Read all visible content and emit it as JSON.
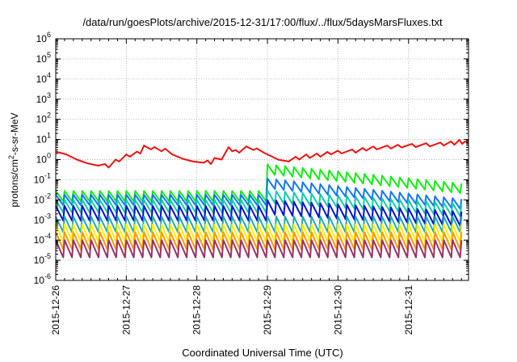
{
  "chart_data": {
    "type": "line",
    "title": "/data/run/goesPlots/archive/2015-12-31/17:00/flux/../flux/5daysMarsFluxes.txt",
    "xlabel": "Coordinated Universal Time (UTC)",
    "ylabel_parts": {
      "pre": "protons/cm",
      "sup": "2",
      "post": "-s-sr-MeV"
    },
    "x_ticks": [
      "2015-12-26",
      "2015-12-27",
      "2015-12-28",
      "2015-12-29",
      "2015-12-30",
      "2015-12-31"
    ],
    "x_range_days": [
      0,
      5.85
    ],
    "y_scale": "log",
    "ylim": [
      1e-06,
      1000000.0
    ],
    "y_tick_exponents": [
      -6,
      -5,
      -4,
      -3,
      -2,
      -1,
      0,
      1,
      2,
      3,
      4,
      5,
      6
    ],
    "y_tick_base": "10",
    "grid": true,
    "series": [
      {
        "color": "#ee1111",
        "points": [
          [
            0,
            2.5
          ],
          [
            0.15,
            1.8
          ],
          [
            0.3,
            1.0
          ],
          [
            0.45,
            0.65
          ],
          [
            0.6,
            0.5
          ],
          [
            0.7,
            0.6
          ],
          [
            0.75,
            0.4
          ],
          [
            0.85,
            1.0
          ],
          [
            0.9,
            0.8
          ],
          [
            1.0,
            1.8
          ],
          [
            1.05,
            1.4
          ],
          [
            1.15,
            2.5
          ],
          [
            1.2,
            2.0
          ],
          [
            1.25,
            5.0
          ],
          [
            1.35,
            3.2
          ],
          [
            1.4,
            4.2
          ],
          [
            1.5,
            2.6
          ],
          [
            1.55,
            3.5
          ],
          [
            1.65,
            1.8
          ],
          [
            1.8,
            1.1
          ],
          [
            1.95,
            0.8
          ],
          [
            2.1,
            0.7
          ],
          [
            2.15,
            0.9
          ],
          [
            2.2,
            0.6
          ],
          [
            2.25,
            1.2
          ],
          [
            2.35,
            1.0
          ],
          [
            2.45,
            4.2
          ],
          [
            2.5,
            2.6
          ],
          [
            2.55,
            3.0
          ],
          [
            2.6,
            2.2
          ],
          [
            2.7,
            4.5
          ],
          [
            2.8,
            3.0
          ],
          [
            2.85,
            3.6
          ],
          [
            2.95,
            2.2
          ],
          [
            3.05,
            1.5
          ],
          [
            3.15,
            1.0
          ],
          [
            3.3,
            0.8
          ],
          [
            3.4,
            1.4
          ],
          [
            3.45,
            1.0
          ],
          [
            3.55,
            1.8
          ],
          [
            3.6,
            1.2
          ],
          [
            3.7,
            2.0
          ],
          [
            3.75,
            1.4
          ],
          [
            3.85,
            2.4
          ],
          [
            3.9,
            1.8
          ],
          [
            4.0,
            2.8
          ],
          [
            4.05,
            2.0
          ],
          [
            4.2,
            3.2
          ],
          [
            4.25,
            2.2
          ],
          [
            4.35,
            3.8
          ],
          [
            4.4,
            2.8
          ],
          [
            4.5,
            4.5
          ],
          [
            4.55,
            3.2
          ],
          [
            4.7,
            5.0
          ],
          [
            4.75,
            3.5
          ],
          [
            4.85,
            5.5
          ],
          [
            4.9,
            4.0
          ],
          [
            5.05,
            6.0
          ],
          [
            5.1,
            4.2
          ],
          [
            5.25,
            6.5
          ],
          [
            5.3,
            4.5
          ],
          [
            5.45,
            7.0
          ],
          [
            5.5,
            5.0
          ],
          [
            5.6,
            8.0
          ],
          [
            5.65,
            5.5
          ],
          [
            5.72,
            9.5
          ],
          [
            5.76,
            6.0
          ],
          [
            5.8,
            8.0
          ],
          [
            5.85,
            6.5
          ]
        ]
      },
      {
        "color": "#11ee11",
        "base": 0.028,
        "amp": 5,
        "jump_day": 2.95,
        "jump_to": 0.6,
        "end": 0.06,
        "decay": 0.5
      },
      {
        "color": "#1177ee",
        "base": 0.018,
        "amp": 5,
        "jump_day": 2.95,
        "jump_to": 0.12,
        "end": 0.01,
        "decay": 0.5
      },
      {
        "color": "#11ccaa",
        "base": 0.01,
        "amp": 6,
        "jump_day": 2.95,
        "jump_to": 0.03,
        "end": 0.006,
        "decay": 0.4
      },
      {
        "color": "#0011cc",
        "base": 0.005,
        "amp": 7,
        "jump_day": 2.95,
        "jump_to": 0.01,
        "end": 0.0025,
        "decay": 0.3
      },
      {
        "color": "#22aaaa",
        "base": 0.0015,
        "amp": 7,
        "jump_day": 99,
        "jump_to": 0.0015,
        "end": 0.0012,
        "decay": 0.15
      },
      {
        "color": "#ffee00",
        "base": 0.0006,
        "amp": 8,
        "jump_day": 99,
        "jump_to": 0.0006,
        "end": 0.0005,
        "decay": 0.12
      },
      {
        "color": "#ff9900",
        "base": 0.00025,
        "amp": 8,
        "jump_day": 99,
        "jump_to": 0.00025,
        "end": 0.0002,
        "decay": 0.1
      },
      {
        "color": "#993366",
        "base": 0.0001,
        "amp": 8,
        "jump_day": 99,
        "jump_to": 0.0001,
        "end": 9e-05,
        "decay": 0.1
      }
    ]
  }
}
